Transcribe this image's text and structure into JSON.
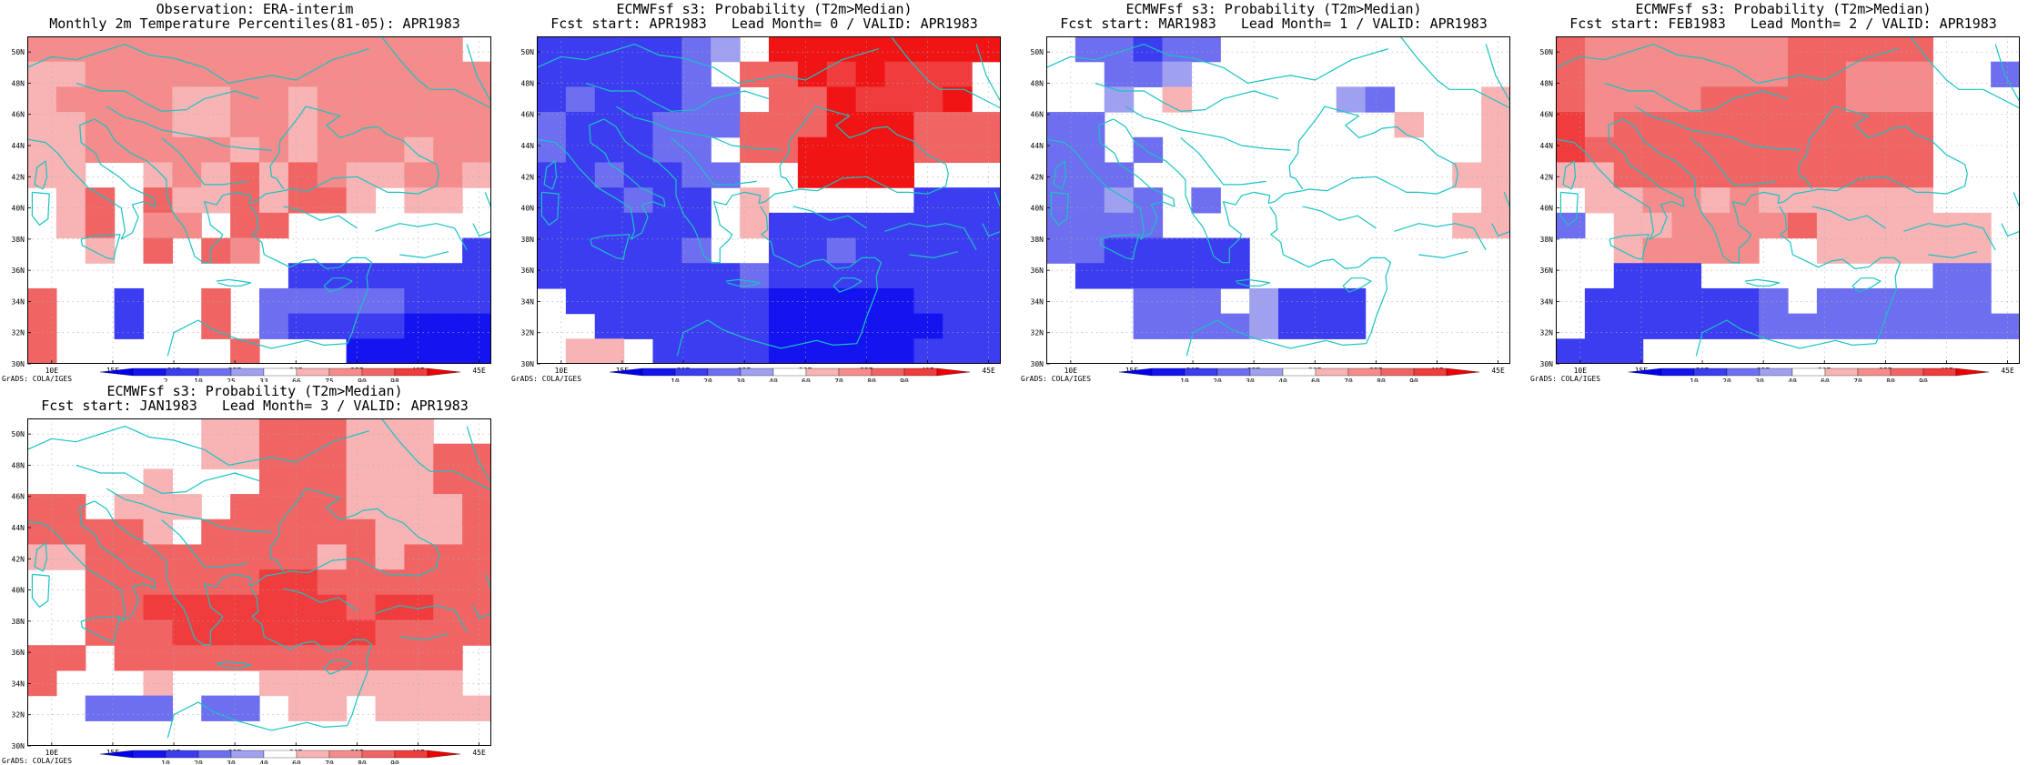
{
  "credit": "GrADS: COLA/IGES",
  "lat_labels": [
    "30N",
    "32N",
    "34N",
    "36N",
    "38N",
    "40N",
    "42N",
    "44N",
    "46N",
    "48N",
    "50N"
  ],
  "lon_labels": [
    "10E",
    "15E",
    "20E",
    "25E",
    "30E",
    "35E",
    "40E",
    "45E"
  ],
  "colors": {
    "coast": "#19c3c3",
    "grid": "#aaaaaa",
    "blue": [
      "#1414f0",
      "#3c3cf0",
      "#6e6ef0",
      "#a0a0f0",
      "#c8c8f4"
    ],
    "red": [
      "#f8b4b4",
      "#f48c8c",
      "#f06464",
      "#f03c3c",
      "#f01414"
    ]
  },
  "panels": [
    {
      "title1": "Observation: ERA-interim",
      "title2": "Monthly 2m Temperature Percentiles(81-05): APR1983",
      "colorbar_labels": [
        "2",
        "10",
        "25",
        "33",
        "66",
        "75",
        "90",
        "98"
      ],
      "grid": [
        "ggggggggggggggg",
        "ffgggggggggggggg",
        "fggggffggfgggggg",
        "ffgggffggfggggggg",
        "ffgggggfgfgggfgg",
        "ffwwfgfhfhgffggf",
        "wfhwhffhfhhfwffw",
        "wfhwggwhhwwwwwww",
        "wwfwhwhgwwwwwwwb",
        "wwwwwwwwwbbbbbbb",
        "hwwbwwhwcccccbbb",
        "hwwbwwhwcbbbbaaa",
        "hwwwwwwhwwwaaaaa"
      ]
    },
    {
      "title1": "ECMWFsf s3: Probability (T2m>Median)",
      "title2": "Fcst start: APR1983   Lead Month= 0 / VALID: APR1983",
      "colorbar_labels": [
        "10",
        "20",
        "30",
        "40",
        "60",
        "70",
        "80",
        "90"
      ],
      "grid": [
        "bbbbbcdwjjjjjjjj",
        "bbbbbcwhhjijiii",
        "bcbbbccwhhjiiij",
        "cbbbccchhhjjjhhh",
        "cbbbccwhhjjjjhhh",
        "bbcbbccwwjjjjwww",
        "bbbcbbwfwwwwwbbb",
        "bbbbbbwfbbbbbbbb",
        "bbbbbcwwbbcbbbbb",
        "bbbbbbbcbbbbbbbb",
        "wbbbbbbbaaaaabbb",
        "wwbbbbbbaaaaaabb",
        "wffwbbbbaaaaabbb"
      ]
    },
    {
      "title1": "ECMWFsf s3: Probability (T2m>Median)",
      "title2": "Fcst start: MAR1983   Lead Month= 1 / VALID: APR1983",
      "colorbar_labels": [
        "10",
        "20",
        "30",
        "40",
        "60",
        "70",
        "80",
        "90"
      ],
      "grid": [
        "wccbccwwwwwwwwww",
        "wwccdwwwwwwwwwwwf",
        "wwdwfwwwwwdcwwwf",
        "ccwwwwwwwwwwfwwf",
        "ccwcwwwwwwwwwwwf",
        "cccwwwwwwwwwwwff",
        "ccdcwcwwwwwwwwwf",
        "ccccwwwwwwwwwwfff",
        "ccbbbbbwwwwwwwwww",
        "wbbbbbbwwwwwwwwww",
        "wwwcccwdbbbwwwww",
        "wwwccccdbbbwwwww",
        "wwwwwwwwwwwwwwww"
      ]
    },
    {
      "title1": "ECMWFsf s3: Probability (T2m>Median)",
      "title2": "Fcst start: FEB1983   Lead Month= 2 / VALID: APR1983",
      "colorbar_labels": [
        "10",
        "20",
        "30",
        "40",
        "60",
        "70",
        "80",
        "90"
      ],
      "grid": [
        "hggggggghhhhhwww",
        "hggggggghhgggwwc",
        "hgggghhhhhgggwww",
        "ighhhhhhhhhhhwww",
        "ihhhhhhhhhhhhwww",
        "ffhhhhhhhhhhhwww",
        "wffggfgffffffwww",
        "cwffgggghffffffw",
        "wwfggggwwffffffw",
        "wwbbbwwwwwwwwcc",
        "wbbbbbbcwccccccw",
        "wbbbbbbccccccccc",
        "bbbwwwwwwwwwwwww"
      ]
    },
    {
      "title1": "ECMWFsf s3: Probability (T2m>Median)",
      "title2": "Fcst start: JAN1983   Lead Month= 3 / VALID: APR1983",
      "colorbar_labels": [
        "10",
        "20",
        "30",
        "40",
        "60",
        "70",
        "80",
        "90"
      ],
      "grid": [
        "wwwwwwffhhhfffww",
        "wwwwwwffhhhfffhh",
        "wwwwfwwwhhhfffhh",
        "hhwfffwhhhhffffh",
        "hhhhfwhhhhhhfffh",
        "ffhhhhhhhhfhfhhh",
        "wwhhhhhhiihhhhhh",
        "wwhhiiiiiiihiihh",
        "wwhhhiiiiiiihhhh",
        "hhwhhhhhhhhhhhhw",
        "hwwwfwwwfffffffw",
        "wwcccwccwffwffff",
        "wwwwwwwwwwwwwwww"
      ]
    }
  ]
}
